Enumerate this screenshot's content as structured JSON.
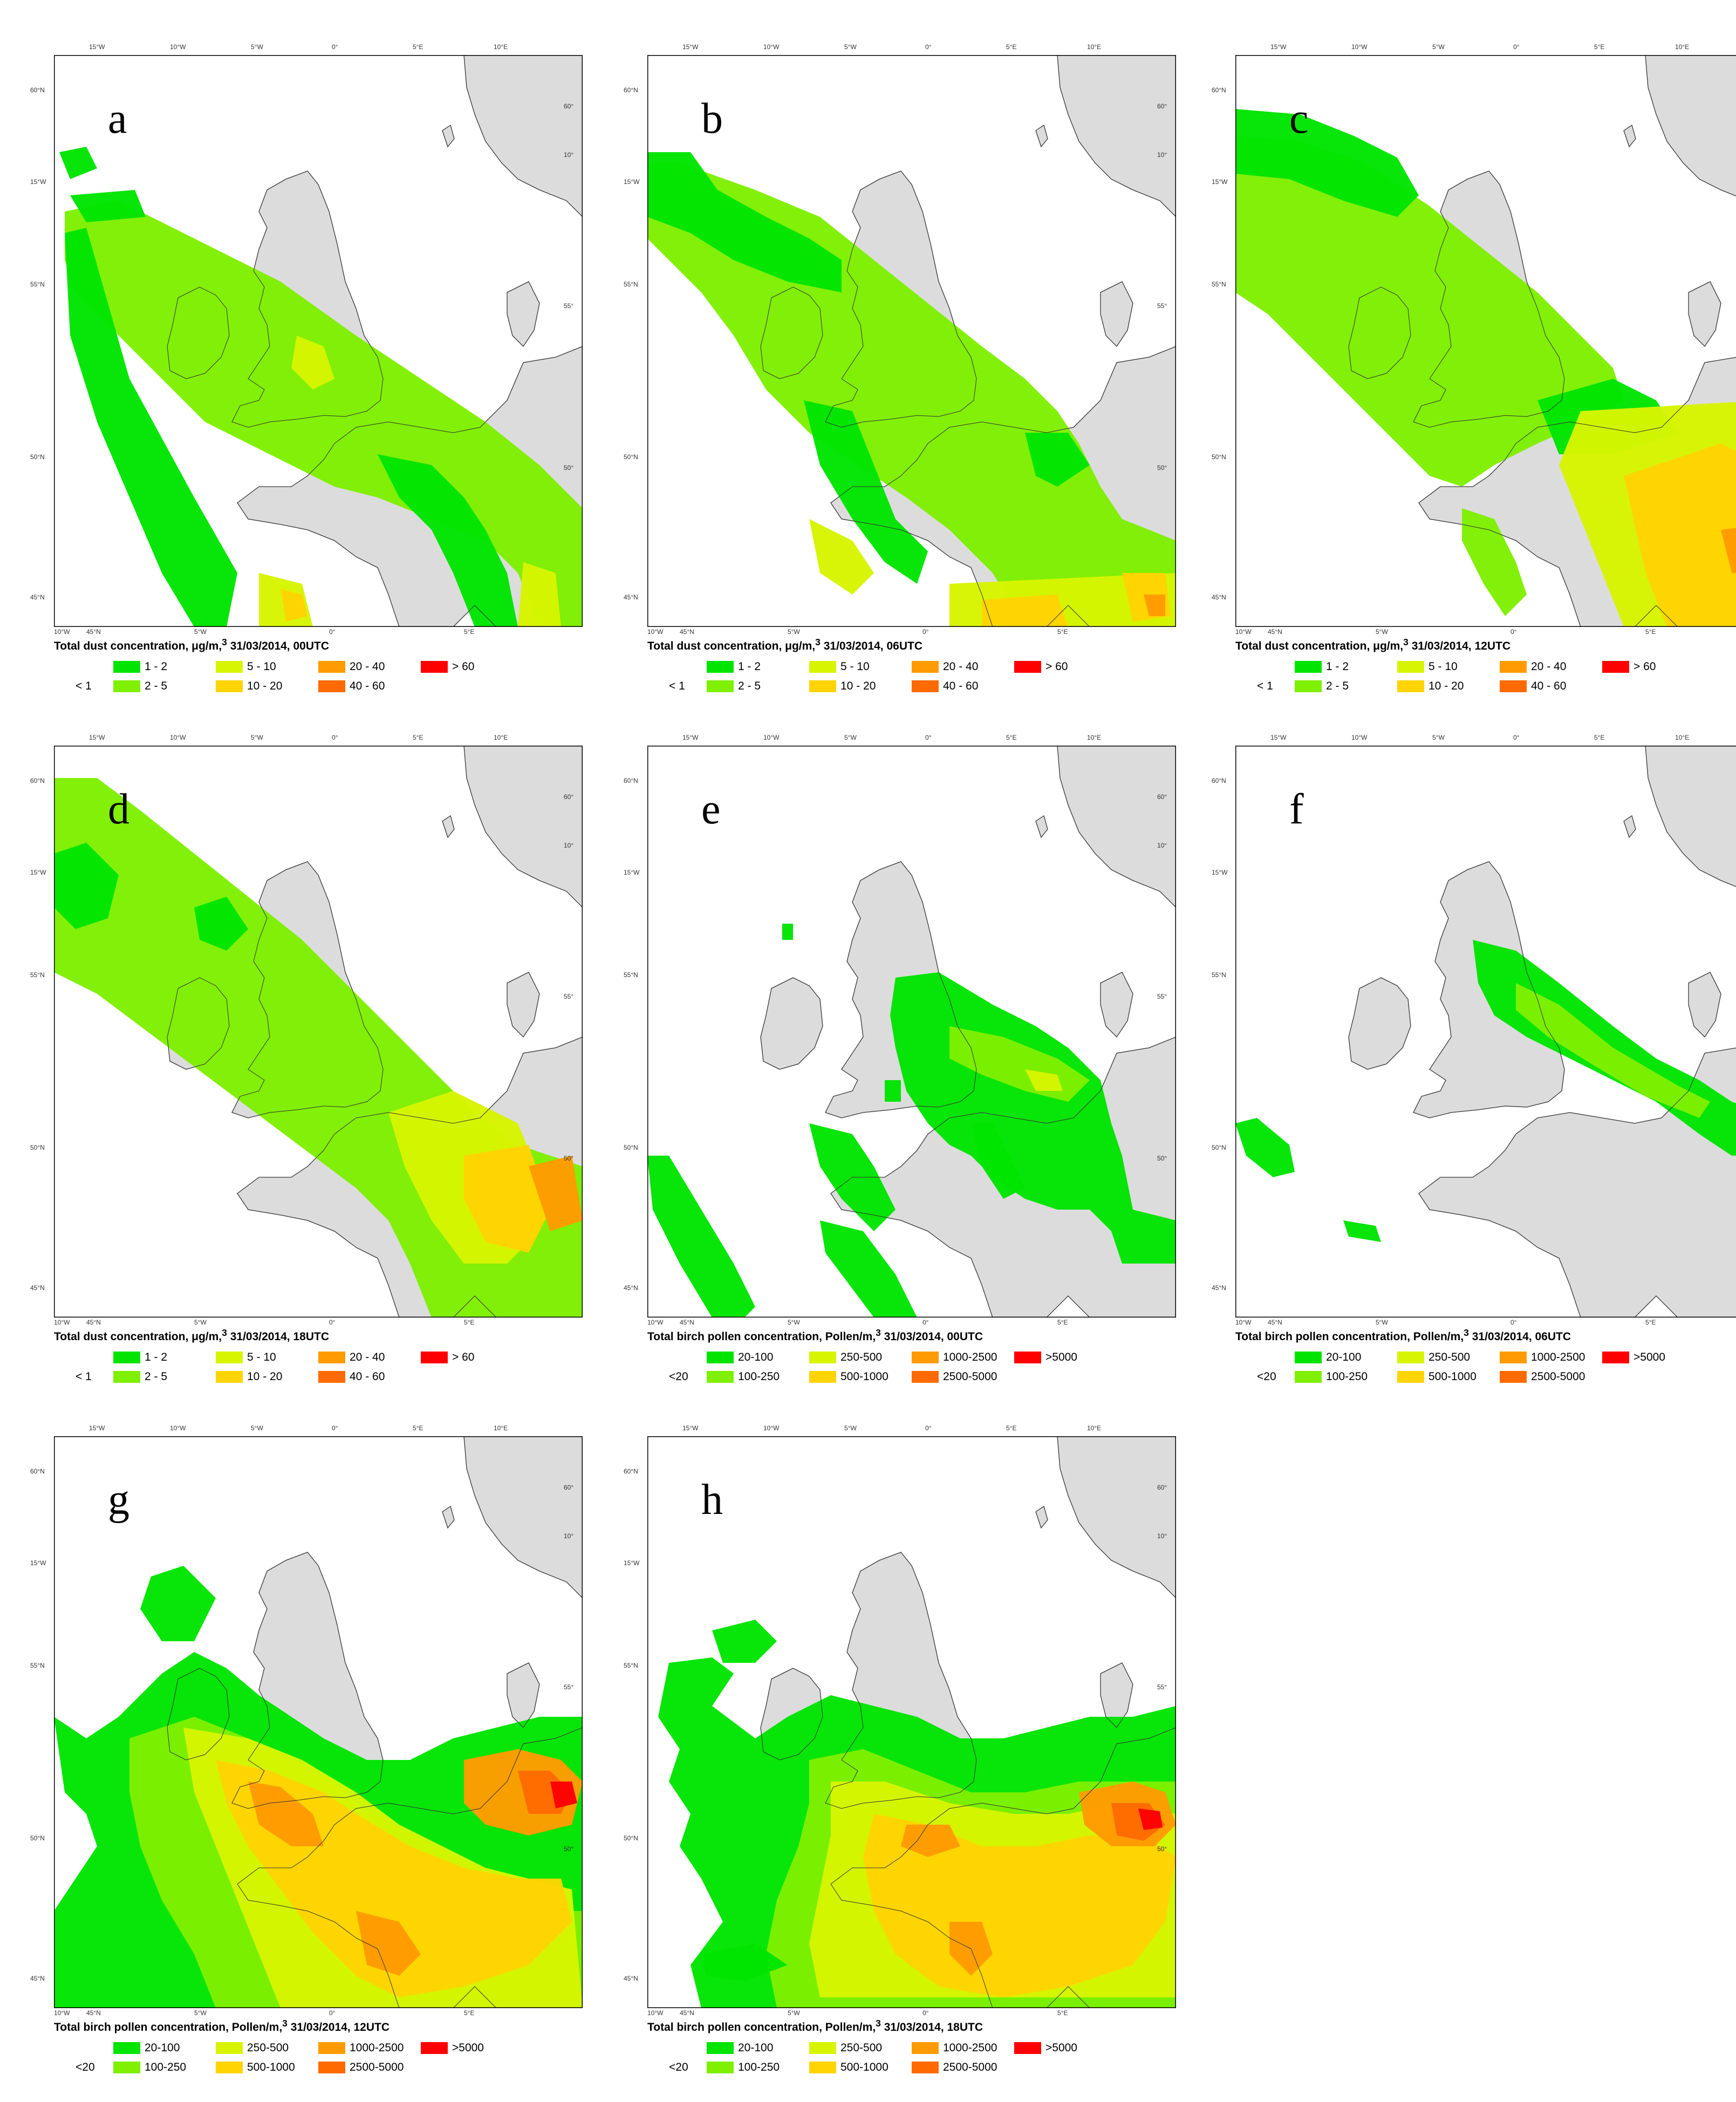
{
  "colors": {
    "land": "#dcdcdc",
    "sea": "#ffffff",
    "c1": "#00e400",
    "c2": "#7ef000",
    "c3": "#d7f500",
    "c4": "#ffd400",
    "c5": "#ff9b00",
    "c6": "#ff6a00",
    "c7": "#ff0000"
  },
  "dust_legend": {
    "below": "< 1",
    "items": [
      "1 - 2",
      "2 - 5",
      "5 - 10",
      "10 - 20",
      "20 - 40",
      "40 - 60",
      "> 60"
    ]
  },
  "pollen_legend": {
    "below": "<20",
    "items": [
      "20-100",
      "100-250",
      "250-500",
      "500-1000",
      "1000-2500",
      "2500-5000",
      ">5000"
    ]
  },
  "ticks": {
    "top": [
      "15°W",
      "10°W",
      "5°W",
      "0°",
      "5°E",
      "10°E"
    ],
    "left": [
      "60°N",
      "15°W",
      "55°N",
      "50°N",
      "45°N"
    ],
    "right": [
      "60°",
      "10°",
      "55°",
      "50°"
    ],
    "bottom": [
      "10°W",
      "45°N",
      "5°W",
      "0°",
      "5°E"
    ]
  },
  "panels": [
    {
      "letter": "a",
      "caption_main": "Total dust concentration, μg/m,",
      "caption_sup": "3",
      "caption_time": " 31/03/2014, 00UTC",
      "legend": "dust"
    },
    {
      "letter": "b",
      "caption_main": "Total dust concentration, μg/m,",
      "caption_sup": "3",
      "caption_time": " 31/03/2014, 06UTC",
      "legend": "dust"
    },
    {
      "letter": "c",
      "caption_main": "Total dust concentration, μg/m,",
      "caption_sup": "3",
      "caption_time": " 31/03/2014, 12UTC",
      "legend": "dust"
    },
    {
      "letter": "d",
      "caption_main": "Total dust concentration, μg/m,",
      "caption_sup": "3",
      "caption_time": " 31/03/2014, 18UTC",
      "legend": "dust"
    },
    {
      "letter": "e",
      "caption_main": "Total birch pollen concentration, Pollen/m,",
      "caption_sup": "3",
      "caption_time": " 31/03/2014, 00UTC",
      "legend": "pollen"
    },
    {
      "letter": "f",
      "caption_main": "Total birch pollen concentration, Pollen/m,",
      "caption_sup": "3",
      "caption_time": " 31/03/2014, 06UTC",
      "legend": "pollen"
    },
    {
      "letter": "g",
      "caption_main": "Total birch pollen concentration, Pollen/m,",
      "caption_sup": "3",
      "caption_time": " 31/03/2014, 12UTC",
      "legend": "pollen"
    },
    {
      "letter": "h",
      "caption_main": "Total birch pollen concentration, Pollen/m,",
      "caption_sup": "3",
      "caption_time": " 31/03/2014, 18UTC",
      "legend": "pollen"
    }
  ]
}
